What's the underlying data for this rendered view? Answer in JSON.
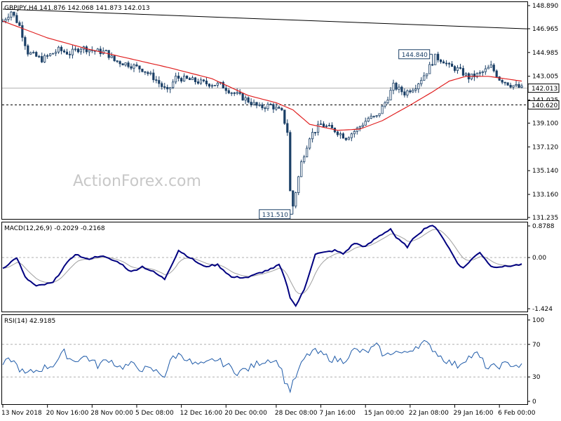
{
  "chart_data": [
    {
      "type": "candlestick",
      "name": "price-panel",
      "header": "GBPJPY,H4  141.876 142.068 141.873 142.013",
      "watermark": "ActionForex.com",
      "y_ticks": [
        "148.890",
        "146.965",
        "144.985",
        "143.005",
        "141.025",
        "139.100",
        "137.120",
        "135.140",
        "133.160",
        "131.235"
      ],
      "y_tick_values": [
        148.89,
        146.965,
        144.985,
        143.005,
        141.025,
        139.1,
        137.12,
        135.14,
        133.16,
        131.235
      ],
      "ylim": [
        131.235,
        148.89
      ],
      "current_price_label": "142.013",
      "current_price": 142.013,
      "support_label": "140.620",
      "support_level": 140.62,
      "annotations": [
        {
          "text": "144.840",
          "value": 144.84,
          "bar_index": 154
        },
        {
          "text": "131.510",
          "value": 131.51,
          "bar_index": 104
        }
      ],
      "trendline": {
        "from": {
          "bar_index": 0,
          "value": 148.6
        },
        "to": {
          "bar_index": 187,
          "value": 146.95
        }
      },
      "price_anchors": [
        [
          0,
          147.6
        ],
        [
          3,
          148.4
        ],
        [
          6,
          147.2
        ],
        [
          9,
          145.0
        ],
        [
          14,
          144.4
        ],
        [
          20,
          145.2
        ],
        [
          24,
          144.9
        ],
        [
          28,
          145.4
        ],
        [
          33,
          145.1
        ],
        [
          37,
          145.0
        ],
        [
          40,
          144.3
        ],
        [
          45,
          144.0
        ],
        [
          50,
          143.6
        ],
        [
          54,
          142.9
        ],
        [
          59,
          141.7
        ],
        [
          62,
          142.9
        ],
        [
          67,
          142.7
        ],
        [
          73,
          142.4
        ],
        [
          78,
          142.3
        ],
        [
          82,
          141.7
        ],
        [
          87,
          141.1
        ],
        [
          92,
          140.4
        ],
        [
          96,
          140.6
        ],
        [
          100,
          140.0
        ],
        [
          102,
          138.4
        ],
        [
          103,
          133.4
        ],
        [
          104,
          132.2
        ],
        [
          107,
          135.8
        ],
        [
          110,
          138.0
        ],
        [
          114,
          139.0
        ],
        [
          119,
          138.5
        ],
        [
          123,
          137.9
        ],
        [
          127,
          138.6
        ],
        [
          131,
          139.5
        ],
        [
          134,
          139.6
        ],
        [
          137,
          140.8
        ],
        [
          140,
          142.2
        ],
        [
          144,
          141.6
        ],
        [
          148,
          142.2
        ],
        [
          152,
          143.4
        ],
        [
          155,
          144.6
        ],
        [
          158,
          144.3
        ],
        [
          160,
          143.8
        ],
        [
          163,
          143.6
        ],
        [
          167,
          142.9
        ],
        [
          171,
          143.2
        ],
        [
          175,
          143.8
        ],
        [
          178,
          142.8
        ],
        [
          182,
          142.3
        ],
        [
          186,
          142.0
        ]
      ],
      "ma_anchors": [
        [
          0,
          147.6
        ],
        [
          8,
          146.9
        ],
        [
          16,
          146.2
        ],
        [
          30,
          145.3
        ],
        [
          45,
          144.5
        ],
        [
          60,
          143.7
        ],
        [
          75,
          142.8
        ],
        [
          88,
          141.4
        ],
        [
          98,
          140.8
        ],
        [
          104,
          140.2
        ],
        [
          110,
          139.0
        ],
        [
          120,
          138.5
        ],
        [
          128,
          138.6
        ],
        [
          136,
          139.3
        ],
        [
          146,
          140.6
        ],
        [
          154,
          141.7
        ],
        [
          160,
          142.6
        ],
        [
          166,
          143.0
        ],
        [
          174,
          143.0
        ],
        [
          186,
          142.6
        ]
      ],
      "x_ticks": [
        "13 Nov 2018",
        "20 Nov 16:00",
        "28 Nov 00:00",
        "5 Dec 08:00",
        "12 Dec 16:00",
        "20 Dec 00:00",
        "28 Dec 08:00",
        "7 Jan 16:00",
        "15 Jan 00:00",
        "22 Jan 08:00",
        "29 Jan 16:00",
        "6 Feb 00:00"
      ],
      "x_tick_bar_index": [
        0,
        16,
        32,
        48,
        64,
        80,
        98,
        114,
        130,
        146,
        162,
        178
      ],
      "series": [
        {
          "values_ref": "price_anchors",
          "color": "#1a3f66"
        },
        {
          "values_ref": "ma_anchors",
          "color": "#e02020"
        }
      ]
    },
    {
      "type": "line",
      "name": "macd-panel",
      "header": "MACD(12,26,9) -0.2029 -0.2168",
      "y_ticks": [
        "0.8788",
        "0.00",
        "-1.424"
      ],
      "y_tick_values": [
        0.8788,
        0.0,
        -1.424
      ],
      "ylim": [
        -1.424,
        0.8788
      ],
      "macd_anchors": [
        [
          0,
          -0.3
        ],
        [
          5,
          0.0
        ],
        [
          8,
          -0.55
        ],
        [
          12,
          -0.8
        ],
        [
          18,
          -0.7
        ],
        [
          22,
          -0.25
        ],
        [
          26,
          0.1
        ],
        [
          30,
          -0.05
        ],
        [
          35,
          0.05
        ],
        [
          42,
          -0.15
        ],
        [
          46,
          -0.4
        ],
        [
          50,
          -0.25
        ],
        [
          54,
          -0.4
        ],
        [
          58,
          -0.6
        ],
        [
          63,
          0.2
        ],
        [
          67,
          0.0
        ],
        [
          72,
          -0.25
        ],
        [
          77,
          -0.2
        ],
        [
          82,
          -0.55
        ],
        [
          88,
          -0.55
        ],
        [
          93,
          -0.4
        ],
        [
          97,
          -0.3
        ],
        [
          99,
          -0.2
        ],
        [
          101,
          -0.55
        ],
        [
          103,
          -1.1
        ],
        [
          105,
          -1.35
        ],
        [
          108,
          -0.9
        ],
        [
          112,
          0.1
        ],
        [
          116,
          0.15
        ],
        [
          119,
          0.2
        ],
        [
          122,
          0.1
        ],
        [
          126,
          0.4
        ],
        [
          130,
          0.3
        ],
        [
          134,
          0.55
        ],
        [
          137,
          0.7
        ],
        [
          139,
          0.8
        ],
        [
          141,
          0.55
        ],
        [
          145,
          0.3
        ],
        [
          148,
          0.6
        ],
        [
          152,
          0.85
        ],
        [
          154,
          0.9
        ],
        [
          157,
          0.65
        ],
        [
          160,
          0.25
        ],
        [
          163,
          -0.15
        ],
        [
          165,
          -0.3
        ],
        [
          168,
          -0.05
        ],
        [
          171,
          0.15
        ],
        [
          175,
          -0.25
        ],
        [
          180,
          -0.25
        ],
        [
          185,
          -0.2
        ]
      ],
      "signal_lag_bars": 4,
      "series": [
        {
          "values_ref": "macd_anchors",
          "color": "#000080"
        },
        {
          "values_ref": "signal",
          "color": "#a0a0a0"
        }
      ]
    },
    {
      "type": "line",
      "name": "rsi-panel",
      "header": "RSI(14) 42.9185",
      "y_ticks": [
        "100",
        "70",
        "30",
        "0"
      ],
      "y_tick_values": [
        100,
        70,
        30,
        0
      ],
      "ylim": [
        0,
        100
      ],
      "rsi_anchors": [
        [
          0,
          45
        ],
        [
          3,
          52
        ],
        [
          6,
          40
        ],
        [
          8,
          33
        ],
        [
          12,
          38
        ],
        [
          18,
          45
        ],
        [
          22,
          60
        ],
        [
          25,
          50
        ],
        [
          30,
          55
        ],
        [
          34,
          44
        ],
        [
          38,
          52
        ],
        [
          42,
          42
        ],
        [
          46,
          45
        ],
        [
          50,
          40
        ],
        [
          54,
          38
        ],
        [
          58,
          32
        ],
        [
          61,
          55
        ],
        [
          64,
          58
        ],
        [
          68,
          46
        ],
        [
          72,
          44
        ],
        [
          76,
          52
        ],
        [
          80,
          45
        ],
        [
          84,
          36
        ],
        [
          88,
          40
        ],
        [
          92,
          48
        ],
        [
          96,
          52
        ],
        [
          99,
          47
        ],
        [
          101,
          26
        ],
        [
          103,
          14
        ],
        [
          105,
          30
        ],
        [
          108,
          52
        ],
        [
          111,
          62
        ],
        [
          114,
          58
        ],
        [
          118,
          52
        ],
        [
          122,
          50
        ],
        [
          126,
          63
        ],
        [
          130,
          60
        ],
        [
          134,
          68
        ],
        [
          137,
          55
        ],
        [
          140,
          62
        ],
        [
          144,
          58
        ],
        [
          148,
          68
        ],
        [
          151,
          72
        ],
        [
          154,
          65
        ],
        [
          157,
          55
        ],
        [
          160,
          48
        ],
        [
          163,
          44
        ],
        [
          166,
          53
        ],
        [
          170,
          58
        ],
        [
          174,
          40
        ],
        [
          178,
          44
        ],
        [
          182,
          46
        ],
        [
          186,
          43
        ]
      ],
      "series": [
        {
          "values_ref": "rsi_anchors",
          "color": "#1e5aa8"
        }
      ]
    }
  ]
}
